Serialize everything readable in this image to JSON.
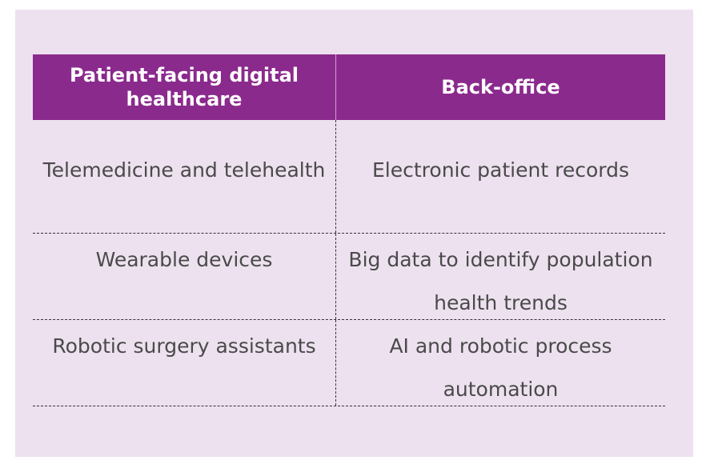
{
  "table": {
    "headers": [
      "Patient-facing digital healthcare",
      "Back-office"
    ],
    "rows": [
      [
        "Telemedicine and telehealth",
        "Electronic patient records"
      ],
      [
        "Wearable devices",
        "Big data to identify population health trends"
      ],
      [
        "Robotic surgery assistants",
        "AI and robotic process automation"
      ]
    ]
  },
  "colors": {
    "panel_background": "#ede1ef",
    "header_background": "#8b2a8d",
    "header_text": "#ffffff",
    "body_text": "#4a4a4a"
  }
}
